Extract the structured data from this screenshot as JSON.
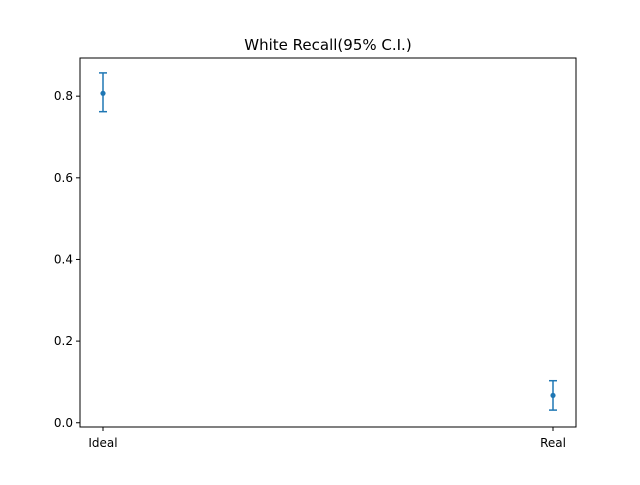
{
  "chart_data": {
    "type": "scatter",
    "title": "White Recall(95% C.I.)",
    "xlabel": "",
    "ylabel": "",
    "categories": [
      "Ideal",
      "Real"
    ],
    "series": [
      {
        "points": [
          {
            "x": "Ideal",
            "y": 0.807,
            "lower": 0.762,
            "upper": 0.857
          },
          {
            "x": "Real",
            "y": 0.067,
            "lower": 0.031,
            "upper": 0.103
          }
        ]
      }
    ],
    "ylim": [
      -0.0104,
      0.8935
    ],
    "yticks": [
      0.0,
      0.2,
      0.4,
      0.6,
      0.8
    ],
    "ytick_labels": [
      "0.0",
      "0.2",
      "0.4",
      "0.6",
      "0.8"
    ],
    "grid": false,
    "legend": "none",
    "colors": {
      "series": "#1f77b4",
      "axes": "#000000",
      "background": "#ffffff"
    }
  }
}
